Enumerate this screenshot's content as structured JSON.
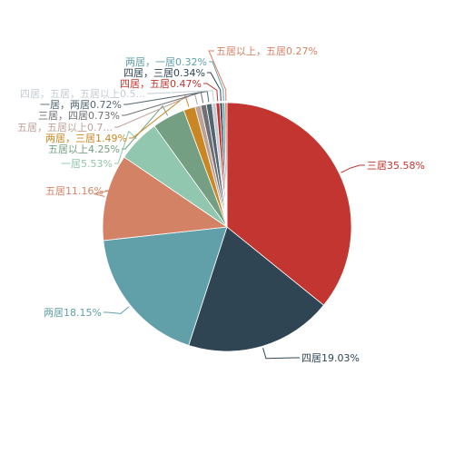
{
  "chart_data": {
    "type": "pie",
    "title": "",
    "slices": [
      {
        "label": "三居35.58%",
        "name": "三居",
        "value": 35.58,
        "color": "#c23531"
      },
      {
        "label": "四居19.03%",
        "name": "四居",
        "value": 19.03,
        "color": "#2f4554"
      },
      {
        "label": "两居18.15%",
        "name": "两居",
        "value": 18.15,
        "color": "#61a0a8"
      },
      {
        "label": "五居11.16%",
        "name": "五居",
        "value": 11.16,
        "color": "#d48265"
      },
      {
        "label": "一居5.53%",
        "name": "一居",
        "value": 5.53,
        "color": "#91c7ae"
      },
      {
        "label": "五居以上4.25%",
        "name": "五居以上",
        "value": 4.25,
        "color": "#749f83"
      },
      {
        "label": "两居，三居1.49%",
        "name": "两居，三居",
        "value": 1.49,
        "color": "#ca8622"
      },
      {
        "label": "五居，五居以上0.7...",
        "name": "五居，五居以上",
        "value": 0.74,
        "color": "#bda29a"
      },
      {
        "label": "三居，四居0.73%",
        "name": "三居，四居",
        "value": 0.73,
        "color": "#6e7074"
      },
      {
        "label": "一居，两居0.72%",
        "name": "一居，两居",
        "value": 0.72,
        "color": "#546570"
      },
      {
        "label": "四居，五居，五居以上0.5...",
        "name": "四居，五居，五居以上",
        "value": 0.53,
        "color": "#c4ccd3"
      },
      {
        "label": "四居，五居0.47%",
        "name": "四居，五居",
        "value": 0.47,
        "color": "#c23531"
      },
      {
        "label": "四居，三居0.34%",
        "name": "四居，三居",
        "value": 0.34,
        "color": "#2f4554"
      },
      {
        "label": "两居，一居0.32%",
        "name": "两居，一居",
        "value": 0.32,
        "color": "#61a0a8"
      },
      {
        "label": "五居以上，五居0.27%",
        "name": "五居以上，五居",
        "value": 0.27,
        "color": "#d48265"
      }
    ]
  }
}
